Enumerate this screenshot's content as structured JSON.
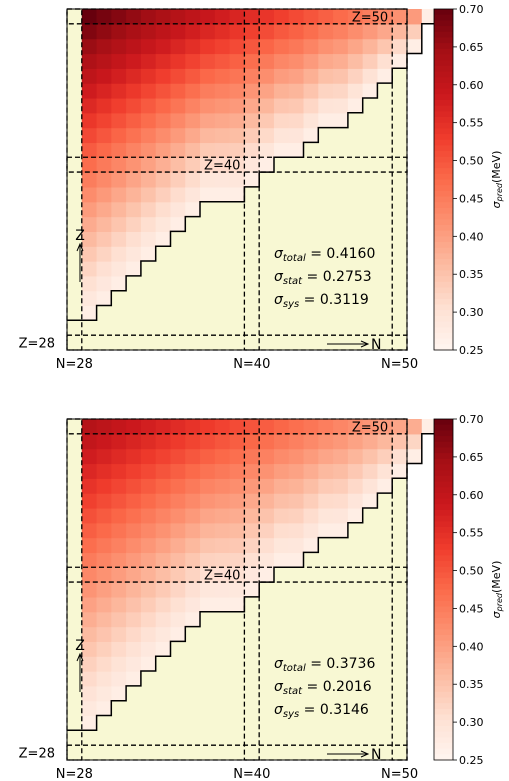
{
  "chart_data": [
    {
      "type": "heatmap",
      "title": "",
      "x_axis_labels": [
        "N=28",
        "N=40",
        "N=50"
      ],
      "y_axis_labels": [
        "Z=28"
      ],
      "region_labels": [
        "Z=40",
        "Z=50"
      ],
      "arrow_labels": {
        "z": "Z",
        "n": "N"
      },
      "colorbar": {
        "label": "σpred(MeV)",
        "label_main": "σ",
        "label_sub": "pred",
        "label_unit": "(MeV)",
        "ticks": [
          "0.70",
          "0.65",
          "0.60",
          "0.55",
          "0.50",
          "0.45",
          "0.40",
          "0.35",
          "0.30",
          "0.25"
        ],
        "range": [
          0.25,
          0.7
        ],
        "colormap": "Reds"
      },
      "sigmas": [
        {
          "sym": "σ",
          "sub": "total",
          "eq": " = 0.4160"
        },
        {
          "sym": "σ",
          "sub": "stat",
          "eq": " = 0.2753"
        },
        {
          "sym": "σ",
          "sub": "sys",
          "eq": " = 0.3119"
        }
      ],
      "grid": {
        "z_min": 28,
        "z_max": 50,
        "n_min": 28,
        "n_max": 50,
        "max_value_at_top_left": 0.7,
        "value_near_dripline": 0.27,
        "dripline_z_by_n": [
          30,
          31,
          32,
          33,
          34,
          35,
          36,
          37,
          38,
          38,
          38,
          39,
          40,
          41,
          41,
          42,
          43,
          43,
          44,
          45,
          46,
          47,
          48,
          50
        ]
      },
      "colors": {
        "background": "#f8f8d3"
      }
    },
    {
      "type": "heatmap",
      "title": "",
      "x_axis_labels": [
        "N=28",
        "N=40",
        "N=50"
      ],
      "y_axis_labels": [
        "Z=28"
      ],
      "region_labels": [
        "Z=40",
        "Z=50"
      ],
      "arrow_labels": {
        "z": "Z",
        "n": "N"
      },
      "colorbar": {
        "label": "σpred(MeV)",
        "label_main": "σ",
        "label_sub": "pred",
        "label_unit": "(MeV)",
        "ticks": [
          "0.70",
          "0.65",
          "0.60",
          "0.55",
          "0.50",
          "0.45",
          "0.40",
          "0.35",
          "0.30",
          "0.25"
        ],
        "range": [
          0.25,
          0.7
        ],
        "colormap": "Reds"
      },
      "sigmas": [
        {
          "sym": "σ",
          "sub": "total",
          "eq": " = 0.3736"
        },
        {
          "sym": "σ",
          "sub": "stat",
          "eq": " = 0.2016"
        },
        {
          "sym": "σ",
          "sub": "sys",
          "eq": " = 0.3146"
        }
      ],
      "grid": {
        "z_min": 28,
        "z_max": 50,
        "n_min": 28,
        "n_max": 50,
        "max_value_at_top_left": 0.62,
        "value_near_dripline": 0.27,
        "dripline_z_by_n": [
          30,
          31,
          32,
          33,
          34,
          35,
          36,
          37,
          38,
          38,
          38,
          39,
          40,
          41,
          41,
          42,
          43,
          43,
          44,
          45,
          46,
          47,
          48,
          50
        ]
      },
      "colors": {
        "background": "#f8f8d3"
      }
    }
  ]
}
